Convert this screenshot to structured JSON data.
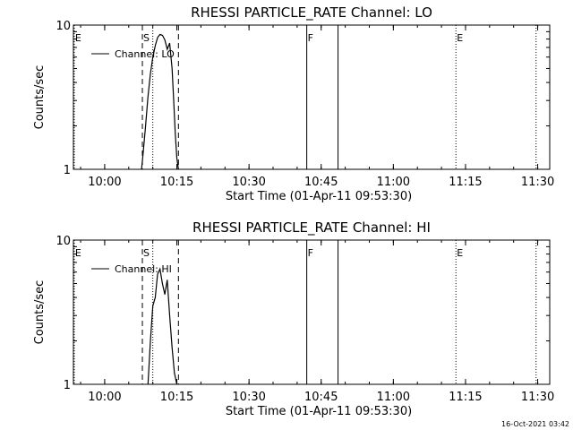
{
  "chart_data": [
    {
      "type": "line",
      "title": "RHESSI PARTICLE_RATE Channel: LO",
      "xlabel": "Start Time (01-Apr-11 09:53:30)",
      "ylabel": "Counts/sec",
      "yscale": "log",
      "ylim": [
        1,
        10
      ],
      "y_ticks": [
        {
          "value": 1,
          "label": "1"
        },
        {
          "value": 10,
          "label": "10"
        }
      ],
      "xlim": [
        "09:53:30",
        "11:32:30"
      ],
      "x_ticks": [
        {
          "time": "10:00",
          "label": "10:00"
        },
        {
          "time": "10:15",
          "label": "10:15"
        },
        {
          "time": "10:30",
          "label": "10:30"
        },
        {
          "time": "10:45",
          "label": "10:45"
        },
        {
          "time": "11:00",
          "label": "11:00"
        },
        {
          "time": "11:15",
          "label": "11:15"
        },
        {
          "time": "11:30",
          "label": "11:30"
        }
      ],
      "grid": false,
      "legend": {
        "position": "top-left",
        "entries": [
          "Channel: LO"
        ]
      },
      "series": [
        {
          "name": "Channel: LO",
          "x": [
            "10:07:40",
            "10:08:00",
            "10:08:30",
            "10:09:00",
            "10:09:30",
            "10:10:00",
            "10:10:30",
            "10:11:00",
            "10:11:30",
            "10:12:00",
            "10:12:30",
            "10:13:00",
            "10:13:30",
            "10:14:00",
            "10:14:20",
            "10:14:40",
            "10:15:00",
            "10:15:20"
          ],
          "y": [
            1.0,
            1.3,
            2.0,
            3.2,
            4.6,
            6.0,
            7.2,
            8.2,
            8.6,
            8.5,
            7.9,
            6.8,
            7.5,
            5.0,
            3.0,
            1.8,
            1.2,
            1.0
          ]
        }
      ],
      "vertical_markers": [
        {
          "time": "09:53:40",
          "style": "dotted",
          "label": "E"
        },
        {
          "time": "10:07:50",
          "style": "dashed",
          "label": "S"
        },
        {
          "time": "10:10:00",
          "style": "dotted",
          "label": ""
        },
        {
          "time": "10:15:20",
          "style": "dashed",
          "label": ""
        },
        {
          "time": "10:42:00",
          "style": "solid",
          "label": "F"
        },
        {
          "time": "10:48:30",
          "style": "solid",
          "label": ""
        },
        {
          "time": "11:13:00",
          "style": "dotted",
          "label": "E"
        },
        {
          "time": "11:29:40",
          "style": "dotted",
          "label": ""
        }
      ]
    },
    {
      "type": "line",
      "title": "RHESSI PARTICLE_RATE Channel: HI",
      "xlabel": "Start Time (01-Apr-11 09:53:30)",
      "ylabel": "Counts/sec",
      "yscale": "log",
      "ylim": [
        1,
        10
      ],
      "y_ticks": [
        {
          "value": 1,
          "label": "1"
        },
        {
          "value": 10,
          "label": "10"
        }
      ],
      "xlim": [
        "09:53:30",
        "11:32:30"
      ],
      "x_ticks": [
        {
          "time": "10:00",
          "label": "10:00"
        },
        {
          "time": "10:15",
          "label": "10:15"
        },
        {
          "time": "10:30",
          "label": "10:30"
        },
        {
          "time": "10:45",
          "label": "10:45"
        },
        {
          "time": "11:00",
          "label": "11:00"
        },
        {
          "time": "11:15",
          "label": "11:15"
        },
        {
          "time": "11:30",
          "label": "11:30"
        }
      ],
      "grid": false,
      "legend": {
        "position": "top-left",
        "entries": [
          "Channel: HI"
        ]
      },
      "series": [
        {
          "name": "Channel: HI",
          "x": [
            "10:09:00",
            "10:09:30",
            "10:10:00",
            "10:10:30",
            "10:11:00",
            "10:11:30",
            "10:12:00",
            "10:12:30",
            "10:13:00",
            "10:13:30",
            "10:14:00",
            "10:14:30",
            "10:15:00"
          ],
          "y": [
            1.0,
            2.0,
            3.5,
            4.0,
            5.8,
            6.3,
            5.0,
            4.2,
            5.3,
            3.0,
            1.8,
            1.2,
            1.0
          ]
        }
      ],
      "vertical_markers": [
        {
          "time": "09:53:40",
          "style": "dotted",
          "label": "E"
        },
        {
          "time": "10:07:50",
          "style": "dashed",
          "label": "S"
        },
        {
          "time": "10:10:00",
          "style": "dotted",
          "label": ""
        },
        {
          "time": "10:15:20",
          "style": "dashed",
          "label": ""
        },
        {
          "time": "10:42:00",
          "style": "solid",
          "label": "F"
        },
        {
          "time": "10:48:30",
          "style": "solid",
          "label": ""
        },
        {
          "time": "11:13:00",
          "style": "dotted",
          "label": "E"
        },
        {
          "time": "11:29:40",
          "style": "dotted",
          "label": ""
        }
      ]
    }
  ],
  "footer": {
    "timestamp": "16-Oct-2021 03:42"
  }
}
